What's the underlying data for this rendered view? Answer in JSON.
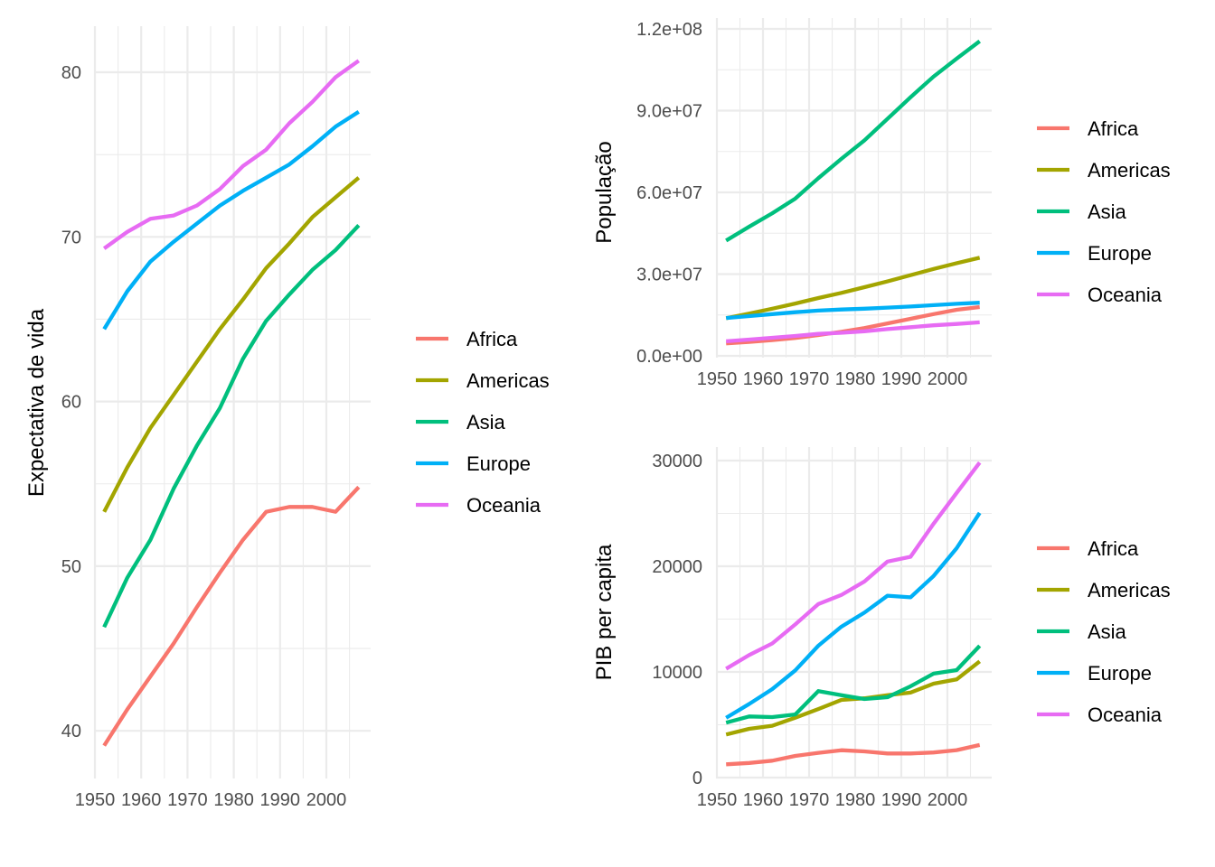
{
  "colors": {
    "Africa": "#F8766D",
    "Americas": "#A3A500",
    "Asia": "#00BF7D",
    "Europe": "#00B0F6",
    "Oceania": "#E76BF3"
  },
  "chart_data": [
    {
      "id": "life",
      "type": "line",
      "title": "",
      "xlabel": "",
      "ylabel": "Expectativa de vida",
      "xlim": [
        1950,
        2007
      ],
      "ylim": [
        37.5,
        83
      ],
      "x_ticks": [
        "1950",
        "1960",
        "1970",
        "1980",
        "1990",
        "2000"
      ],
      "y_ticks": [
        "40",
        "50",
        "60",
        "70",
        "80"
      ],
      "grid": true,
      "legend": "right",
      "legend_entries": [
        "Africa",
        "Americas",
        "Asia",
        "Europe",
        "Oceania"
      ],
      "x": [
        1952,
        1957,
        1962,
        1967,
        1972,
        1977,
        1982,
        1987,
        1992,
        1997,
        2002,
        2007
      ],
      "series": [
        {
          "name": "Africa",
          "values": [
            39.1,
            41.3,
            43.3,
            45.3,
            47.5,
            49.6,
            51.6,
            53.3,
            53.6,
            53.6,
            53.3,
            54.8
          ]
        },
        {
          "name": "Americas",
          "values": [
            53.3,
            56.0,
            58.4,
            60.4,
            62.4,
            64.4,
            66.2,
            68.1,
            69.6,
            71.2,
            72.4,
            73.6
          ]
        },
        {
          "name": "Asia",
          "values": [
            46.3,
            49.3,
            51.6,
            54.7,
            57.3,
            59.6,
            62.6,
            64.9,
            66.5,
            68.0,
            69.2,
            70.7
          ]
        },
        {
          "name": "Europe",
          "values": [
            64.4,
            66.7,
            68.5,
            69.7,
            70.8,
            71.9,
            72.8,
            73.6,
            74.4,
            75.5,
            76.7,
            77.6
          ]
        },
        {
          "name": "Oceania",
          "values": [
            69.3,
            70.3,
            71.1,
            71.3,
            71.9,
            72.9,
            74.3,
            75.3,
            76.9,
            78.2,
            79.7,
            80.7
          ]
        }
      ]
    },
    {
      "id": "pop",
      "type": "line",
      "title": "",
      "xlabel": "",
      "ylabel": "População",
      "xlim": [
        1950,
        2007
      ],
      "ylim": [
        0,
        120000000
      ],
      "x_ticks": [
        "1950",
        "1960",
        "1970",
        "1980",
        "1990",
        "2000"
      ],
      "y_ticks": [
        "0.0e+00",
        "3.0e+07",
        "6.0e+07",
        "9.0e+07",
        "1.2e+08"
      ],
      "grid": true,
      "legend": "right",
      "legend_entries": [
        "Africa",
        "Americas",
        "Asia",
        "Europe",
        "Oceania"
      ],
      "x": [
        1952,
        1957,
        1962,
        1967,
        1972,
        1977,
        1982,
        1987,
        1992,
        1997,
        2002,
        2007
      ],
      "series": [
        {
          "name": "Africa",
          "values": [
            4570000,
            5090000,
            5760000,
            6550000,
            7610000,
            8810000,
            10200000,
            11900000,
            13600000,
            15300000,
            16900000,
            17900000
          ]
        },
        {
          "name": "Americas",
          "values": [
            13800000,
            15500000,
            17300000,
            19200000,
            21200000,
            23100000,
            25200000,
            27300000,
            29600000,
            31900000,
            34000000,
            36000000
          ]
        },
        {
          "name": "Asia",
          "values": [
            42300000,
            47400000,
            52300000,
            57700000,
            65200000,
            72300000,
            79100000,
            87000000,
            94900000,
            102500000,
            109100000,
            115500000
          ]
        },
        {
          "name": "Europe",
          "values": [
            13900000,
            14600000,
            15300000,
            16000000,
            16600000,
            17000000,
            17300000,
            17700000,
            18100000,
            18600000,
            19100000,
            19500000
          ]
        },
        {
          "name": "Oceania",
          "values": [
            5340000,
            5970000,
            6640000,
            7300000,
            8050000,
            8460000,
            9030000,
            9800000,
            10500000,
            11200000,
            11700000,
            12300000
          ]
        }
      ]
    },
    {
      "id": "gdp",
      "type": "line",
      "title": "",
      "xlabel": "",
      "ylabel": "PIB per capita",
      "xlim": [
        1950,
        2007
      ],
      "ylim": [
        0,
        30000
      ],
      "x_ticks": [
        "1950",
        "1960",
        "1970",
        "1980",
        "1990",
        "2000"
      ],
      "y_ticks": [
        "0",
        "10000",
        "20000",
        "30000"
      ],
      "grid": true,
      "legend": "right",
      "legend_entries": [
        "Africa",
        "Americas",
        "Asia",
        "Europe",
        "Oceania"
      ],
      "x": [
        1952,
        1957,
        1962,
        1967,
        1972,
        1977,
        1982,
        1987,
        1992,
        1997,
        2002,
        2007
      ],
      "series": [
        {
          "name": "Africa",
          "values": [
            1253,
            1385,
            1598,
            2050,
            2340,
            2586,
            2482,
            2283,
            2282,
            2379,
            2599,
            3089
          ]
        },
        {
          "name": "Americas",
          "values": [
            4079,
            4616,
            4902,
            5668,
            6491,
            7352,
            7507,
            7793,
            8045,
            8889,
            9288,
            11003
          ]
        },
        {
          "name": "Asia",
          "values": [
            5195,
            5788,
            5729,
            5971,
            8187,
            7791,
            7435,
            7608,
            8639,
            9834,
            10174,
            12473
          ]
        },
        {
          "name": "Europe",
          "values": [
            5661,
            6963,
            8365,
            10144,
            12480,
            14284,
            15618,
            17214,
            17062,
            19077,
            21711,
            25054
          ]
        },
        {
          "name": "Oceania",
          "values": [
            10298,
            11599,
            12696,
            14495,
            16417,
            17284,
            18555,
            20448,
            20894,
            24024,
            26939,
            29810
          ]
        }
      ]
    }
  ]
}
